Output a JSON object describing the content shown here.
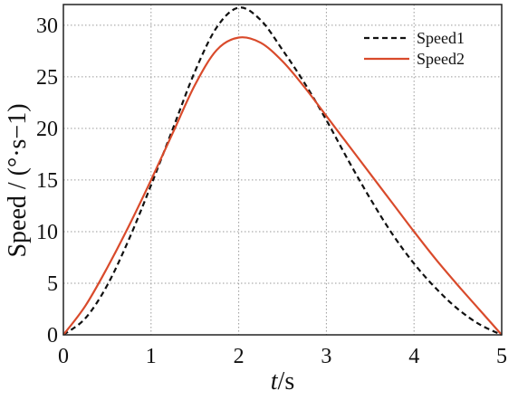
{
  "chart_data": {
    "type": "line",
    "title": "",
    "xlabel_italic": "t",
    "xlabel_unit": "/s",
    "ylabel": "Speed / (°·s−1)",
    "xlim": [
      0,
      5
    ],
    "ylim": [
      0,
      32
    ],
    "xticks": [
      0,
      1,
      2,
      3,
      4,
      5
    ],
    "yticks": [
      0,
      5,
      10,
      15,
      20,
      25,
      30
    ],
    "grid": true,
    "legend_position": "top-right",
    "series": [
      {
        "name": "Speed1",
        "style": "dashed",
        "color": "#111111",
        "x": [
          0,
          0.25,
          0.5,
          0.75,
          1.0,
          1.25,
          1.5,
          1.75,
          2.0,
          2.25,
          2.5,
          2.75,
          3.0,
          3.25,
          3.5,
          3.75,
          4.0,
          4.25,
          4.5,
          4.75,
          5.0
        ],
        "y": [
          0,
          1.6,
          4.8,
          9.3,
          14.5,
          20.0,
          25.5,
          29.8,
          31.7,
          30.5,
          27.6,
          24.4,
          20.8,
          16.9,
          13.2,
          9.8,
          6.9,
          4.5,
          2.5,
          1.0,
          0
        ]
      },
      {
        "name": "Speed2",
        "style": "solid",
        "color": "#d94a2b",
        "x": [
          0,
          0.25,
          0.5,
          0.75,
          1.0,
          1.25,
          1.5,
          1.75,
          2.0,
          2.25,
          2.5,
          2.75,
          3.0,
          3.25,
          3.5,
          3.75,
          4.0,
          4.25,
          4.5,
          4.75,
          5.0
        ],
        "y": [
          0,
          2.8,
          6.5,
          10.6,
          15.0,
          19.6,
          24.2,
          27.6,
          28.8,
          28.3,
          26.5,
          24.0,
          21.2,
          18.4,
          15.6,
          12.8,
          10.0,
          7.3,
          4.8,
          2.4,
          0
        ]
      }
    ]
  }
}
